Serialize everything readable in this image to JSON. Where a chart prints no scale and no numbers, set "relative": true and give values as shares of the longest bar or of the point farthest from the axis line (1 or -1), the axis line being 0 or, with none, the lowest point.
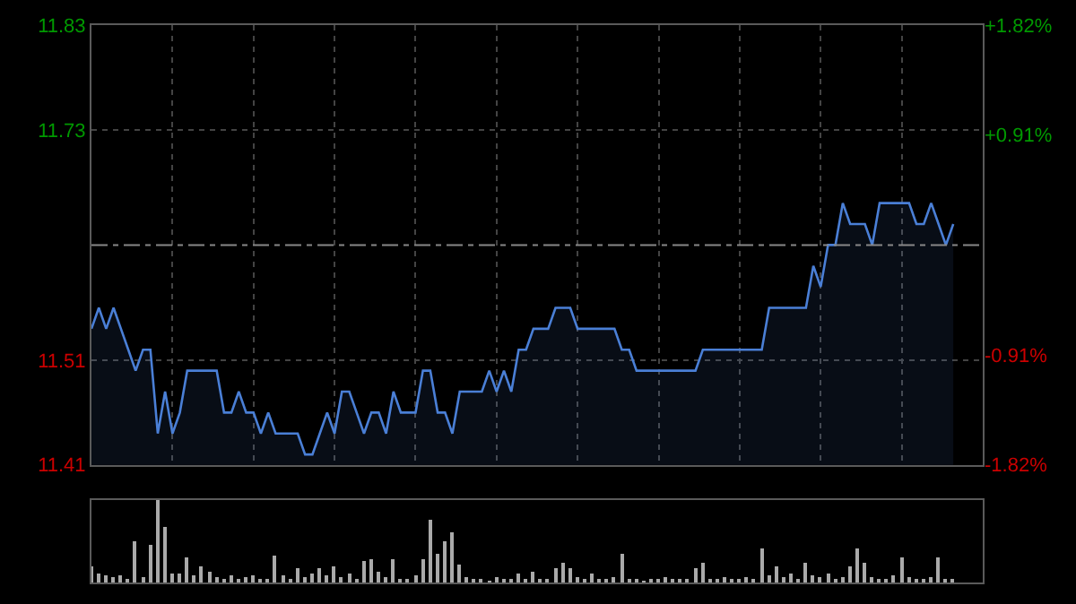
{
  "chart_data": [
    {
      "type": "area",
      "categories": [
        null,
        null,
        null,
        null,
        null,
        null,
        null,
        null,
        null,
        null,
        null,
        null,
        null,
        null,
        null,
        null,
        null,
        null,
        null,
        null,
        null,
        null,
        null,
        null,
        null,
        null,
        null,
        null,
        null,
        null,
        null,
        null,
        null,
        null,
        null,
        null,
        null,
        null,
        null,
        null,
        null,
        null,
        null,
        null,
        null,
        null,
        null,
        null,
        null,
        null,
        null,
        null,
        null,
        null,
        null,
        null,
        null,
        null,
        null,
        null,
        null,
        null,
        null,
        null,
        null,
        null,
        null,
        null,
        null,
        null,
        null,
        null,
        null,
        null,
        null,
        null,
        null,
        null,
        null,
        null,
        null,
        null,
        null,
        null,
        null,
        null,
        null,
        null,
        null,
        null,
        null,
        null,
        null,
        null,
        null,
        null,
        null,
        null,
        null,
        null,
        null,
        null,
        null,
        null,
        null,
        null,
        null,
        null,
        null,
        null,
        null,
        null,
        null,
        null,
        null,
        null,
        null,
        null,
        null,
        null,
        null,
        null
      ],
      "series": [
        {
          "color": "#4a7fd6",
          "values": [
            11.54,
            11.56,
            11.54,
            11.56,
            11.54,
            11.52,
            11.5,
            11.52,
            11.52,
            11.44,
            11.48,
            11.44,
            11.46,
            11.5,
            11.5,
            11.5,
            11.5,
            11.5,
            11.46,
            11.46,
            11.48,
            11.46,
            11.46,
            11.44,
            11.46,
            11.44,
            11.44,
            11.44,
            11.44,
            11.42,
            11.42,
            11.44,
            11.46,
            11.44,
            11.48,
            11.48,
            11.46,
            11.44,
            11.46,
            11.46,
            11.44,
            11.48,
            11.46,
            11.46,
            11.46,
            11.5,
            11.5,
            11.46,
            11.46,
            11.44,
            11.48,
            11.48,
            11.48,
            11.48,
            11.5,
            11.48,
            11.5,
            11.48,
            11.52,
            11.52,
            11.54,
            11.54,
            11.54,
            11.56,
            11.56,
            11.56,
            11.54,
            11.54,
            11.54,
            11.54,
            11.54,
            11.54,
            11.52,
            11.52,
            11.5,
            11.5,
            11.5,
            11.5,
            11.5,
            11.5,
            11.5,
            11.5,
            11.5,
            11.52,
            11.52,
            11.52,
            11.52,
            11.52,
            11.52,
            11.52,
            11.52,
            11.52,
            11.56,
            11.56,
            11.56,
            11.56,
            11.56,
            11.56,
            11.6,
            11.58,
            11.62,
            11.62,
            11.66,
            11.64,
            11.64,
            11.64,
            11.62,
            11.66,
            11.66,
            11.66,
            11.66,
            11.66,
            11.64,
            11.64,
            11.66,
            11.64,
            11.62,
            11.64,
            null,
            null,
            null,
            null
          ]
        }
      ],
      "ylim": [
        11.41,
        11.83
      ],
      "yticks": [
        11.41,
        11.51,
        11.73,
        11.83
      ],
      "y2lim": [
        -1.82,
        1.82
      ],
      "y2ticks": [
        {
          "value": -1.82,
          "label": "-1.82%"
        },
        {
          "value": -0.91,
          "label": "-0.91%"
        },
        {
          "value": 0.91,
          "label": "+0.91%"
        },
        {
          "value": 1.82,
          "label": "+1.82%"
        }
      ],
      "ref_lines": [
        {
          "axis": "y",
          "value": 11.62,
          "color": "#888888",
          "line_style": "dashed"
        }
      ],
      "grid": true,
      "tick_labels": "y"
    },
    {
      "type": "bar",
      "relative": true,
      "color": "#aaaaaa",
      "tick_labels": false,
      "categories": [
        null,
        null,
        null,
        null,
        null,
        null,
        null,
        null,
        null,
        null,
        null,
        null,
        null,
        null,
        null,
        null,
        null,
        null,
        null,
        null,
        null,
        null,
        null,
        null,
        null,
        null,
        null,
        null,
        null,
        null,
        null,
        null,
        null,
        null,
        null,
        null,
        null,
        null,
        null,
        null,
        null,
        null,
        null,
        null,
        null,
        null,
        null,
        null,
        null,
        null,
        null,
        null,
        null,
        null,
        null,
        null,
        null,
        null,
        null,
        null,
        null,
        null,
        null,
        null,
        null,
        null,
        null,
        null,
        null,
        null,
        null,
        null,
        null,
        null,
        null,
        null,
        null,
        null,
        null,
        null,
        null,
        null,
        null,
        null,
        null,
        null,
        null,
        null,
        null,
        null,
        null,
        null,
        null,
        null,
        null,
        null,
        null,
        null,
        null,
        null,
        null,
        null,
        null,
        null,
        null,
        null,
        null,
        null,
        null,
        null,
        null,
        null,
        null,
        null,
        null,
        null,
        null,
        null,
        null,
        null,
        null,
        null
      ],
      "values": [
        0.2,
        0.1,
        0.08,
        0.06,
        0.08,
        0.04,
        0.5,
        0.06,
        0.45,
        1.0,
        0.67,
        0.12,
        0.1,
        0.31,
        0.08,
        0.2,
        0.13,
        0.06,
        0.05,
        0.08,
        0.04,
        0.06,
        0.08,
        0.05,
        0.04,
        0.33,
        0.08,
        0.05,
        0.18,
        0.06,
        0.1,
        0.18,
        0.08,
        0.2,
        0.06,
        0.1,
        0.05,
        0.26,
        0.28,
        0.13,
        0.06,
        0.28,
        0.05,
        0.04,
        0.08,
        0.28,
        0.76,
        0.34,
        0.5,
        0.6,
        0.22,
        0.06,
        0.04,
        0.05,
        0.03,
        0.06,
        0.04,
        0.05,
        0.12,
        0.04,
        0.13,
        0.05,
        0.04,
        0.18,
        0.23,
        0.18,
        0.06,
        0.04,
        0.1,
        0.05,
        0.04,
        0.06,
        0.34,
        0.05,
        0.04,
        0.03,
        0.05,
        0.04,
        0.06,
        0.04,
        0.05,
        0.04,
        0.18,
        0.24,
        0.05,
        0.04,
        0.06,
        0.05,
        0.04,
        0.06,
        0.05,
        0.41,
        0.08,
        0.19,
        0.06,
        0.12,
        0.05,
        0.24,
        0.08,
        0.06,
        0.12,
        0.05,
        0.06,
        0.2,
        0.42,
        0.23,
        0.06,
        0.05,
        0.04,
        0.08,
        0.31,
        0.06,
        0.05,
        0.04,
        0.06,
        0.31,
        0.05,
        0.04,
        null,
        null,
        null,
        null
      ]
    }
  ]
}
